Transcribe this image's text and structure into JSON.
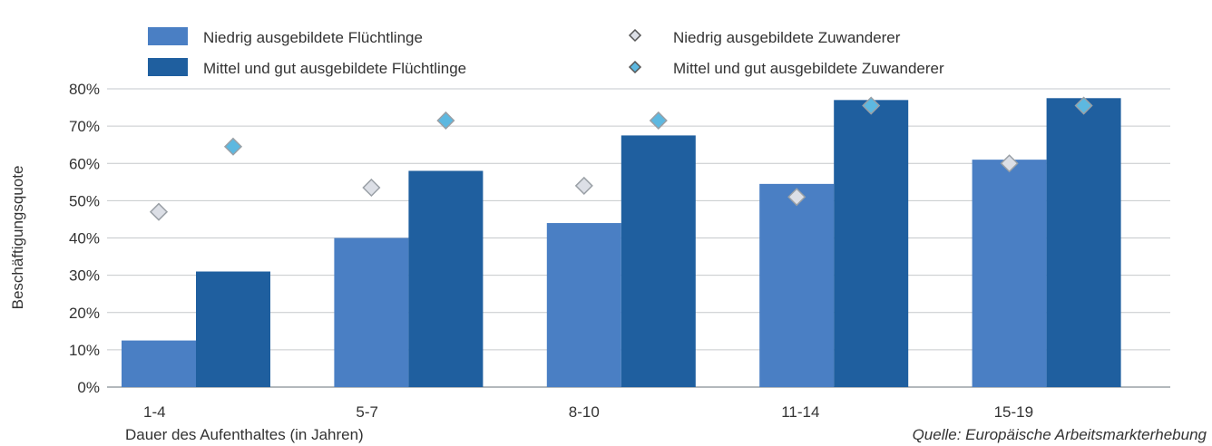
{
  "chart_data": {
    "type": "bar",
    "categories": [
      "1-4",
      "5-7",
      "8-10",
      "11-14",
      "15-19"
    ],
    "series": [
      {
        "name": "Niedrig ausgebildete Flüchtlinge",
        "kind": "bar",
        "color": "#4a7fc4",
        "values": [
          12.5,
          40,
          44,
          54.5,
          61
        ]
      },
      {
        "name": "Mittel und gut ausgebildete Flüchtlinge",
        "kind": "bar",
        "color": "#1f5f9f",
        "values": [
          31,
          58,
          67.5,
          77,
          77.5
        ]
      },
      {
        "name": "Niedrig ausgebildete Zuwanderer",
        "kind": "marker",
        "color": "#dcdfe6",
        "values": [
          47,
          53.5,
          54,
          51,
          60
        ]
      },
      {
        "name": "Mittel und gut ausgebildete Zuwanderer",
        "kind": "marker",
        "color": "#5db8e0",
        "values": [
          64.5,
          71.5,
          71.5,
          75.5,
          75.5
        ]
      }
    ],
    "xlabel": "Dauer des Aufenthaltes (in Jahren)",
    "ylabel": "Beschäftigungsquote",
    "ylim": [
      0,
      80
    ],
    "yticks": [
      "0%",
      "10%",
      "20%",
      "30%",
      "40%",
      "50%",
      "60%",
      "70%",
      "80%"
    ],
    "grid": true,
    "legend_position": "top",
    "source": "Quelle: Europäische Arbeitsmarkterhebung"
  }
}
